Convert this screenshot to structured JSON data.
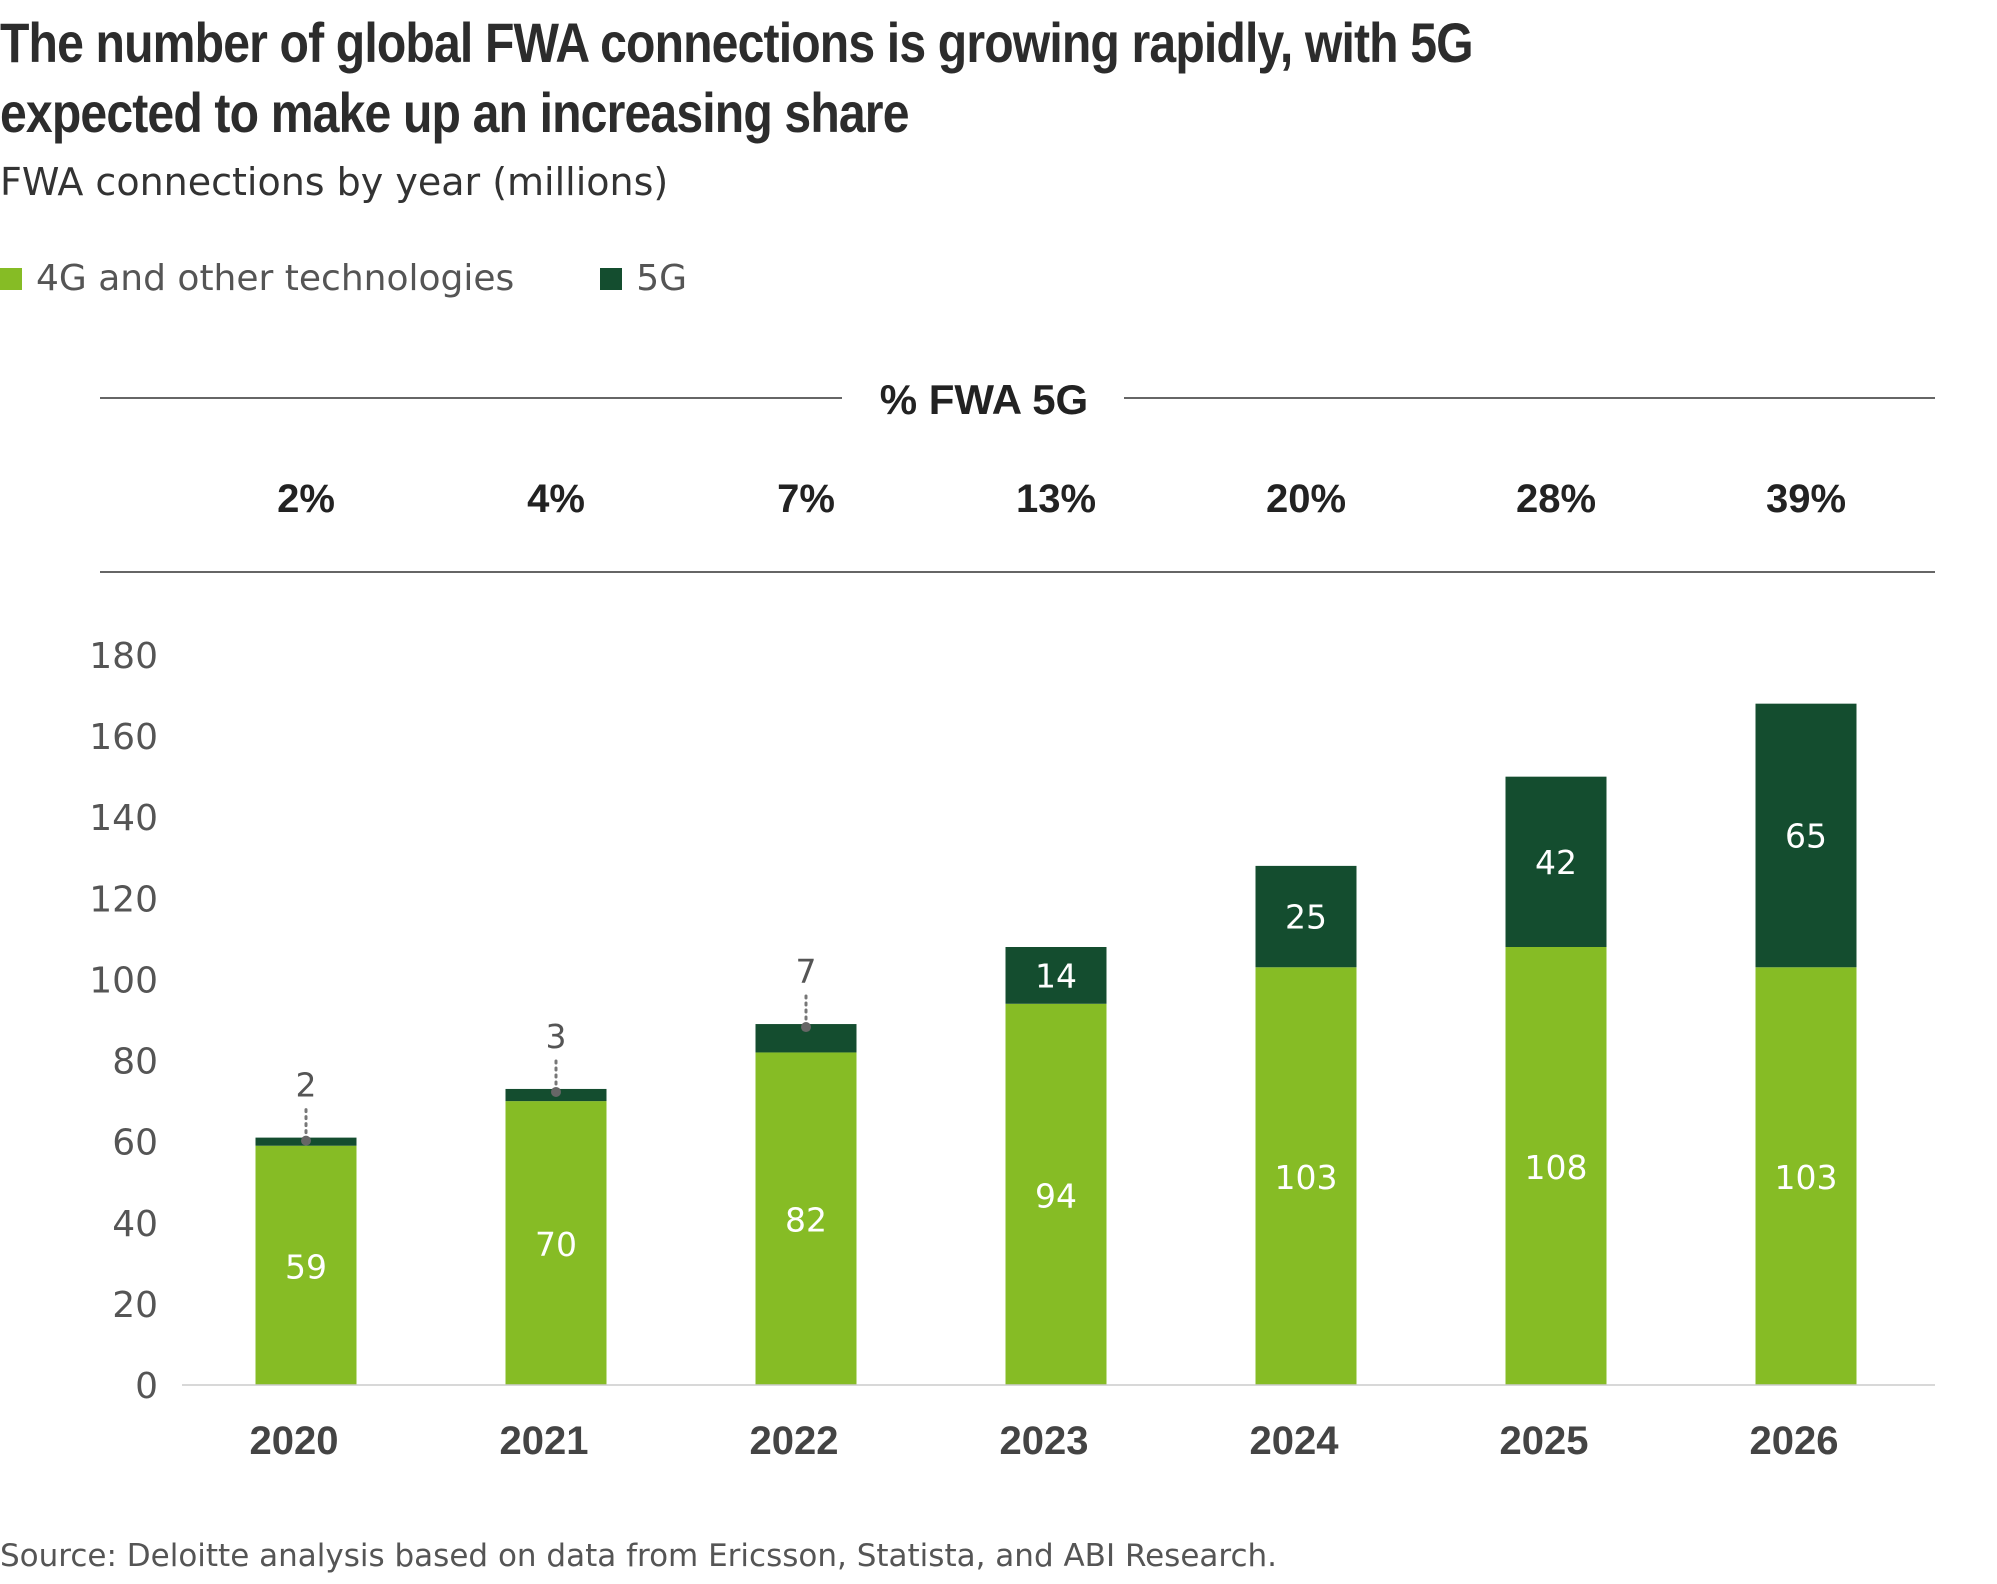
{
  "colors": {
    "four_g": "#86bc25",
    "five_g": "#144d2f",
    "text": "#333333",
    "axis_text": "#555555",
    "rule": "#333333"
  },
  "chart_data": {
    "type": "bar",
    "stacked": true,
    "title": "The number of global FWA connections is growing rapidly, with 5G expected to make up an increasing share",
    "subtitle": "FWA connections by year (millions)",
    "categories": [
      "2020",
      "2021",
      "2022",
      "2023",
      "2024",
      "2025",
      "2026"
    ],
    "series": [
      {
        "name": "4G and other technologies",
        "values": [
          59,
          70,
          82,
          94,
          103,
          108,
          103
        ]
      },
      {
        "name": "5G",
        "values": [
          2,
          3,
          7,
          14,
          25,
          42,
          65
        ]
      }
    ],
    "ylim": [
      0,
      180
    ],
    "yticks": [
      0,
      20,
      40,
      60,
      80,
      100,
      120,
      140,
      160,
      180
    ],
    "legend_position": "top-left",
    "percent_header": "% FWA 5G",
    "percent_5g": [
      "2%",
      "4%",
      "7%",
      "13%",
      "20%",
      "28%",
      "39%"
    ],
    "source": "Source: Deloitte analysis based on data from Ericsson, Statista, and ABI Research."
  }
}
